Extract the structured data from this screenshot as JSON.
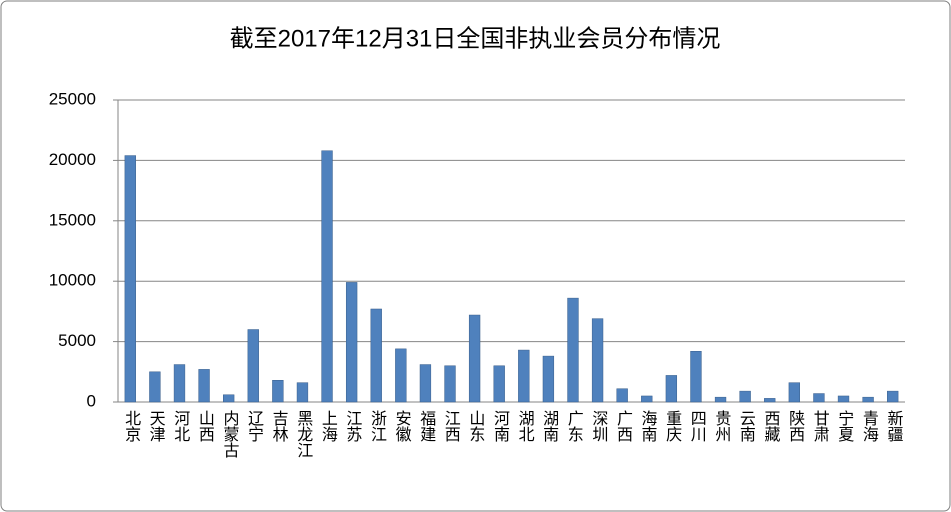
{
  "chart_data": {
    "type": "bar",
    "title": "截至2017年12月31日全国非执业会员分布情况",
    "categories": [
      "北京",
      "天津",
      "河北",
      "山西",
      "内蒙古",
      "辽宁",
      "吉林",
      "黑龙江",
      "上海",
      "江苏",
      "浙江",
      "安徽",
      "福建",
      "江西",
      "山东",
      "河南",
      "湖北",
      "湖南",
      "广东",
      "深圳",
      "广西",
      "海南",
      "重庆",
      "四川",
      "贵州",
      "云南",
      "西藏",
      "陕西",
      "甘肃",
      "宁夏",
      "青海",
      "新疆"
    ],
    "values": [
      20400,
      2500,
      3100,
      2700,
      600,
      6000,
      1800,
      1600,
      20800,
      9900,
      7700,
      4400,
      3100,
      3000,
      7200,
      3000,
      4300,
      3800,
      8600,
      6900,
      1100,
      500,
      2200,
      4200,
      400,
      900,
      300,
      1600,
      700,
      500,
      400,
      900
    ],
    "color": "#4f81bd",
    "ylim": [
      0,
      25000
    ],
    "yticks": [
      0,
      5000,
      10000,
      15000,
      20000,
      25000
    ],
    "grid": true
  }
}
